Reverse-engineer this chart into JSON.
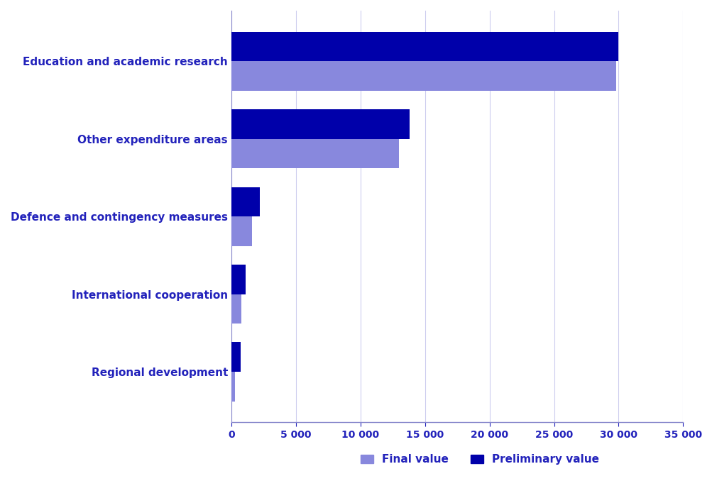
{
  "categories": [
    "Education and academic research",
    "Other expenditure areas",
    "Defence and contingency measures",
    "International cooperation",
    "Regional development"
  ],
  "final_values": [
    29800,
    13000,
    1600,
    800,
    300
  ],
  "preliminary_values": [
    30000,
    13800,
    2200,
    1100,
    700
  ],
  "final_color": "#8888dd",
  "preliminary_color": "#0000aa",
  "xlabel": "",
  "ylabel": "",
  "xlim": [
    0,
    35000
  ],
  "xticks": [
    0,
    5000,
    10000,
    15000,
    20000,
    25000,
    30000,
    35000
  ],
  "xtick_labels": [
    "0",
    "5 000",
    "10 000",
    "15 000",
    "20 000",
    "25 000",
    "30 000",
    "35 000"
  ],
  "legend_final": "Final value",
  "legend_preliminary": "Preliminary value",
  "bar_height": 0.38,
  "label_color": "#2222bb",
  "tick_color": "#2222bb",
  "spine_color": "#8888cc",
  "grid_color": "#ccccee",
  "background_color": "#ffffff"
}
